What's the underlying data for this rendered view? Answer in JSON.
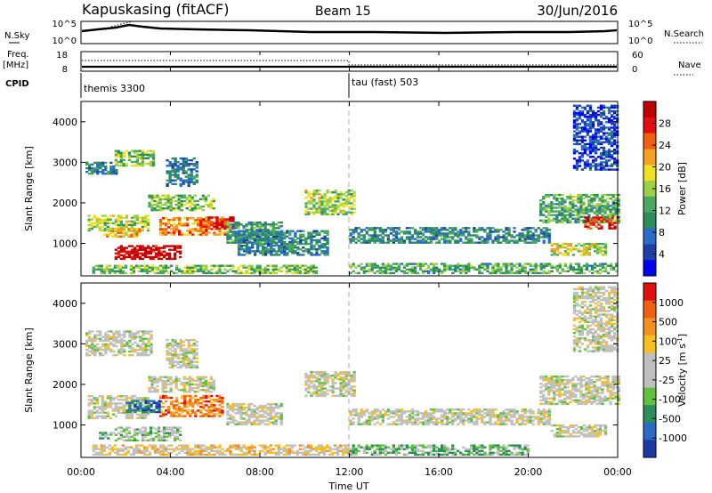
{
  "header": {
    "station": "Kapuskasing (fitACF)",
    "beam": "Beam 15",
    "date": "30/Jun/2016"
  },
  "top_panels": {
    "nsky_label": "N.Sky",
    "nsearch_label": "N.Search",
    "freq_label": "Freq.",
    "freq_unit": "[MHz]",
    "nave_label": "Nave",
    "cpid_label": "CPID",
    "nsky_ticks": [
      "10^5",
      "10^0"
    ],
    "nsearch_ticks": [
      "10^5",
      "10^0"
    ],
    "freq_ticks": [
      "18",
      "8"
    ],
    "nave_ticks": [
      "60",
      "0"
    ],
    "cpid_modes": [
      {
        "label": "themis 3300",
        "start_hour": 0
      },
      {
        "label": "tau (fast) 503",
        "start_hour": 12
      }
    ]
  },
  "x_axis": {
    "label": "Time UT",
    "ticks": [
      "00:00",
      "04:00",
      "08:00",
      "12:00",
      "16:00",
      "20:00",
      "00:00"
    ]
  },
  "chart_data": [
    {
      "type": "heatmap",
      "title": "Power",
      "ylabel": "Slant Range [km]",
      "xlabel": "",
      "x_range_hours": [
        0,
        24
      ],
      "ylim": [
        200,
        4500
      ],
      "yticks": [
        "1000",
        "2000",
        "3000",
        "4000"
      ],
      "colorbar": {
        "label": "Power [dB]",
        "ticks": [
          "28",
          "24",
          "20",
          "16",
          "12",
          "8",
          "4"
        ],
        "colors": [
          "#0000f0",
          "#1e3fa8",
          "#2a6cc8",
          "#2a8d5a",
          "#4aa860",
          "#9bd048",
          "#f0e020",
          "#f5a020",
          "#f06010",
          "#e01010",
          "#c00000"
        ]
      },
      "regions": [
        {
          "t0": 0.2,
          "t1": 1.6,
          "r0": 2700,
          "r1": 3000,
          "level": 0.3
        },
        {
          "t0": 1.5,
          "t1": 3.2,
          "r0": 2900,
          "r1": 3300,
          "level": 0.45
        },
        {
          "t0": 3.8,
          "t1": 5.2,
          "r0": 2400,
          "r1": 3100,
          "level": 0.25
        },
        {
          "t0": 0.3,
          "t1": 3.0,
          "r0": 1300,
          "r1": 1700,
          "level": 0.5
        },
        {
          "t0": 1.0,
          "t1": 2.6,
          "r0": 1150,
          "r1": 1350,
          "level": 0.65
        },
        {
          "t0": 3.0,
          "t1": 6.0,
          "r0": 1800,
          "r1": 2200,
          "level": 0.45
        },
        {
          "t0": 1.5,
          "t1": 4.5,
          "r0": 600,
          "r1": 950,
          "level": 0.95
        },
        {
          "t0": 3.5,
          "t1": 6.5,
          "r0": 1200,
          "r1": 1650,
          "level": 0.7
        },
        {
          "t0": 5.3,
          "t1": 6.8,
          "r0": 1350,
          "r1": 1650,
          "level": 0.85
        },
        {
          "t0": 6.5,
          "t1": 9.0,
          "r0": 1000,
          "r1": 1500,
          "level": 0.35
        },
        {
          "t0": 0.5,
          "t1": 10.5,
          "r0": 250,
          "r1": 450,
          "level": 0.45
        },
        {
          "t0": 10.0,
          "t1": 12.2,
          "r0": 1700,
          "r1": 2300,
          "level": 0.5
        },
        {
          "t0": 7.0,
          "t1": 11.0,
          "r0": 700,
          "r1": 1300,
          "level": 0.3
        },
        {
          "t0": 12.0,
          "t1": 21.0,
          "r0": 1000,
          "r1": 1400,
          "level": 0.3
        },
        {
          "t0": 12.0,
          "t1": 24.0,
          "r0": 250,
          "r1": 500,
          "level": 0.4
        },
        {
          "t0": 20.5,
          "t1": 24.0,
          "r0": 1500,
          "r1": 2200,
          "level": 0.4
        },
        {
          "t0": 22.5,
          "t1": 24.0,
          "r0": 1350,
          "r1": 1650,
          "level": 0.85
        },
        {
          "t0": 21.0,
          "t1": 23.5,
          "r0": 700,
          "r1": 1000,
          "level": 0.55
        },
        {
          "t0": 22.0,
          "t1": 24.0,
          "r0": 2800,
          "r1": 4400,
          "level": 0.15
        }
      ]
    },
    {
      "type": "heatmap",
      "title": "Velocity",
      "ylabel": "Slant Range [km]",
      "xlabel": "Time UT",
      "x_range_hours": [
        0,
        24
      ],
      "ylim": [
        200,
        4500
      ],
      "yticks": [
        "1000",
        "2000",
        "3000",
        "4000"
      ],
      "colorbar": {
        "label": "Velocity [m s^-1]",
        "ticks": [
          "1000",
          "500",
          "100",
          "25",
          "-25",
          "-100",
          "-500",
          "-1000"
        ],
        "colors": [
          "#1a3aa8",
          "#2a6cc8",
          "#2a8d5a",
          "#60c040",
          "#c0c0c0",
          "#c0c0c0",
          "#f5c020",
          "#f59020",
          "#f06010",
          "#e01010"
        ]
      },
      "regions": [
        {
          "t0": 0.2,
          "t1": 3.2,
          "r0": 2700,
          "r1": 3300,
          "level": 0.5
        },
        {
          "t0": 3.8,
          "t1": 5.2,
          "r0": 2400,
          "r1": 3100,
          "level": 0.5
        },
        {
          "t0": 0.3,
          "t1": 3.0,
          "r0": 1150,
          "r1": 1700,
          "level": 0.5
        },
        {
          "t0": 3.0,
          "t1": 6.0,
          "r0": 1800,
          "r1": 2200,
          "level": 0.5
        },
        {
          "t0": 1.5,
          "t1": 4.5,
          "r0": 600,
          "r1": 950,
          "level": 0.42
        },
        {
          "t0": 3.5,
          "t1": 6.3,
          "r0": 1200,
          "r1": 1700,
          "level": 0.8
        },
        {
          "t0": 2.0,
          "t1": 3.5,
          "r0": 1300,
          "r1": 1600,
          "level": 0.15
        },
        {
          "t0": 0.8,
          "t1": 1.5,
          "r0": 650,
          "r1": 800,
          "level": 0.35
        },
        {
          "t0": 6.5,
          "t1": 9.0,
          "r0": 1000,
          "r1": 1500,
          "level": 0.5
        },
        {
          "t0": 0.5,
          "t1": 12.0,
          "r0": 250,
          "r1": 500,
          "level": 0.6
        },
        {
          "t0": 10.0,
          "t1": 12.2,
          "r0": 1700,
          "r1": 2300,
          "level": 0.5
        },
        {
          "t0": 12.0,
          "t1": 21.0,
          "r0": 1000,
          "r1": 1400,
          "level": 0.5
        },
        {
          "t0": 12.0,
          "t1": 20.0,
          "r0": 250,
          "r1": 500,
          "level": 0.35
        },
        {
          "t0": 20.5,
          "t1": 24.0,
          "r0": 1500,
          "r1": 2200,
          "level": 0.5
        },
        {
          "t0": 21.0,
          "t1": 23.5,
          "r0": 700,
          "r1": 1000,
          "level": 0.5
        },
        {
          "t0": 22.0,
          "t1": 24.0,
          "r0": 2800,
          "r1": 4400,
          "level": 0.5
        }
      ]
    }
  ]
}
